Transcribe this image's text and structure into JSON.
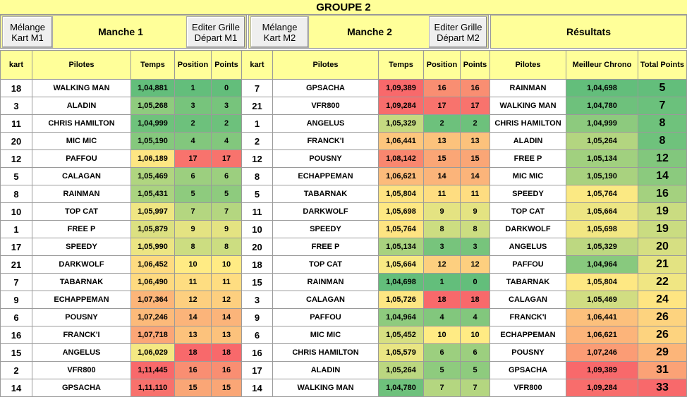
{
  "title": "GROUPE 2",
  "buttons": {
    "melange_m1": [
      "Mélange",
      "Kart M1"
    ],
    "editer_m1": [
      "Editer Grille",
      "Départ  M1"
    ],
    "melange_m2": [
      "Mélange",
      "Kart M2"
    ],
    "editer_m2": [
      "Editer Grille",
      "Départ  M2"
    ]
  },
  "headers": {
    "manche1": "Manche 1",
    "manche2": "Manche 2",
    "resultats": "Résultats"
  },
  "columns": {
    "manche": [
      "kart",
      "Pilotes",
      "Temps",
      "Position",
      "Points"
    ],
    "resultats": [
      "Pilotes",
      "Meilleur Chrono",
      "Total Points"
    ]
  },
  "manche1": [
    {
      "kart": "18",
      "pilote": "WALKING MAN",
      "temps": "1,04,881",
      "position": "1",
      "points": "0",
      "tc": "#63be7b",
      "pc": "#63be7b"
    },
    {
      "kart": "3",
      "pilote": "ALADIN",
      "temps": "1,05,268",
      "position": "3",
      "points": "3",
      "tc": "#8fcb7e",
      "pc": "#77c47c"
    },
    {
      "kart": "11",
      "pilote": "CHRIS HAMILTON",
      "temps": "1,04,999",
      "position": "2",
      "points": "2",
      "tc": "#6fc27c",
      "pc": "#6dc17c"
    },
    {
      "kart": "20",
      "pilote": "MIC MIC",
      "temps": "1,05,190",
      "position": "4",
      "points": "4",
      "tc": "#85c87d",
      "pc": "#82c77d"
    },
    {
      "kart": "12",
      "pilote": "PAFFOU",
      "temps": "1,06,189",
      "position": "17",
      "points": "17",
      "tc": "#fee683",
      "pc": "#f8736d"
    },
    {
      "kart": "5",
      "pilote": "CALAGAN",
      "temps": "1,05,469",
      "position": "6",
      "points": "6",
      "tc": "#b0d580",
      "pc": "#9ccf7f"
    },
    {
      "kart": "8",
      "pilote": "RAINMAN",
      "temps": "1,05,431",
      "position": "5",
      "points": "5",
      "tc": "#aad380",
      "pc": "#8ecb7e"
    },
    {
      "kart": "10",
      "pilote": "TOP CAT",
      "temps": "1,05,997",
      "position": "7",
      "points": "7",
      "tc": "#efe683",
      "pc": "#b4d680"
    },
    {
      "kart": "1",
      "pilote": "FREE P",
      "temps": "1,05,879",
      "position": "9",
      "points": "9",
      "tc": "#dce081",
      "pc": "#e4e382"
    },
    {
      "kart": "17",
      "pilote": "SPEEDY",
      "temps": "1,05,990",
      "position": "8",
      "points": "8",
      "tc": "#ece583",
      "pc": "#ccdd81"
    },
    {
      "kart": "21",
      "pilote": "DARKWOLF",
      "temps": "1,06,452",
      "position": "10",
      "points": "10",
      "tc": "#fedb81",
      "pc": "#ffeb84"
    },
    {
      "kart": "7",
      "pilote": "TABARNAK",
      "temps": "1,06,490",
      "position": "11",
      "points": "11",
      "tc": "#feda80",
      "pc": "#fedd81"
    },
    {
      "kart": "9",
      "pilote": "ECHAPPEMAN",
      "temps": "1,07,364",
      "position": "12",
      "points": "12",
      "tc": "#fcb579",
      "pc": "#fdcf7f"
    },
    {
      "kart": "6",
      "pilote": "POUSNY",
      "temps": "1,07,246",
      "position": "14",
      "points": "14",
      "tc": "#fcba7a",
      "pc": "#fbb47a"
    },
    {
      "kart": "16",
      "pilote": "FRANCK'I",
      "temps": "1,07,718",
      "position": "13",
      "points": "13",
      "tc": "#fba677",
      "pc": "#fcc27c"
    },
    {
      "kart": "15",
      "pilote": "ANGELUS",
      "temps": "1,06,029",
      "position": "18",
      "points": "18",
      "tc": "#f4e883",
      "pc": "#f8696b"
    },
    {
      "kart": "2",
      "pilote": "VFR800",
      "temps": "1,11,445",
      "position": "16",
      "points": "16",
      "tc": "#f8696b",
      "pc": "#f98e72"
    },
    {
      "kart": "14",
      "pilote": "GPSACHA",
      "temps": "1,11,110",
      "position": "15",
      "points": "15",
      "tc": "#f8716c",
      "pc": "#faa676"
    }
  ],
  "manche2": [
    {
      "kart": "7",
      "pilote": "GPSACHA",
      "temps": "1,09,389",
      "position": "16",
      "points": "16",
      "tc": "#f8696b",
      "pc": "#f98e72"
    },
    {
      "kart": "21",
      "pilote": "VFR800",
      "temps": "1,09,284",
      "position": "17",
      "points": "17",
      "tc": "#f86d6c",
      "pc": "#f8736d"
    },
    {
      "kart": "1",
      "pilote": "ANGELUS",
      "temps": "1,05,329",
      "position": "2",
      "points": "2",
      "tc": "#c5da81",
      "pc": "#6dc17c"
    },
    {
      "kart": "2",
      "pilote": "FRANCK'I",
      "temps": "1,06,441",
      "position": "13",
      "points": "13",
      "tc": "#fdc67d",
      "pc": "#fcc27c"
    },
    {
      "kart": "12",
      "pilote": "POUSNY",
      "temps": "1,08,142",
      "position": "15",
      "points": "15",
      "tc": "#f9876f",
      "pc": "#faa676"
    },
    {
      "kart": "8",
      "pilote": "ECHAPPEMAN",
      "temps": "1,06,621",
      "position": "14",
      "points": "14",
      "tc": "#fcbb7b",
      "pc": "#fbb47a"
    },
    {
      "kart": "5",
      "pilote": "TABARNAK",
      "temps": "1,05,804",
      "position": "11",
      "points": "11",
      "tc": "#fee382",
      "pc": "#fedd81"
    },
    {
      "kart": "11",
      "pilote": "DARKWOLF",
      "temps": "1,05,698",
      "position": "9",
      "points": "9",
      "tc": "#fee883",
      "pc": "#e4e382"
    },
    {
      "kart": "10",
      "pilote": "SPEEDY",
      "temps": "1,05,764",
      "position": "8",
      "points": "8",
      "tc": "#fee482",
      "pc": "#ccdd81"
    },
    {
      "kart": "20",
      "pilote": "FREE P",
      "temps": "1,05,134",
      "position": "3",
      "points": "3",
      "tc": "#a8d27f",
      "pc": "#77c47c"
    },
    {
      "kart": "18",
      "pilote": "TOP CAT",
      "temps": "1,05,664",
      "position": "12",
      "points": "12",
      "tc": "#f8e984",
      "pc": "#fdcf7f"
    },
    {
      "kart": "15",
      "pilote": "RAINMAN",
      "temps": "1,04,698",
      "position": "1",
      "points": "0",
      "tc": "#63be7b",
      "pc": "#63be7b"
    },
    {
      "kart": "3",
      "pilote": "CALAGAN",
      "temps": "1,05,726",
      "position": "18",
      "points": "18",
      "tc": "#fee683",
      "pc": "#f8696b"
    },
    {
      "kart": "9",
      "pilote": "PAFFOU",
      "temps": "1,04,964",
      "position": "4",
      "points": "4",
      "tc": "#8ecb7e",
      "pc": "#82c77d"
    },
    {
      "kart": "6",
      "pilote": "MIC MIC",
      "temps": "1,05,452",
      "position": "10",
      "points": "10",
      "tc": "#d7df82",
      "pc": "#ffeb84"
    },
    {
      "kart": "16",
      "pilote": "CHRIS HAMILTON",
      "temps": "1,05,579",
      "position": "6",
      "points": "6",
      "tc": "#e9e583",
      "pc": "#9ccf7f"
    },
    {
      "kart": "17",
      "pilote": "ALADIN",
      "temps": "1,05,264",
      "position": "5",
      "points": "5",
      "tc": "#bbd780",
      "pc": "#8ecb7e"
    },
    {
      "kart": "14",
      "pilote": "WALKING MAN",
      "temps": "1,04,780",
      "position": "7",
      "points": "7",
      "tc": "#6ec17c",
      "pc": "#b4d680"
    }
  ],
  "resultats": [
    {
      "pilote": "RAINMAN",
      "chrono": "1,04,698",
      "total": "5",
      "cc": "#63be7b",
      "tc": "#63be7b"
    },
    {
      "pilote": "WALKING MAN",
      "chrono": "1,04,780",
      "total": "7",
      "cc": "#6ec17c",
      "tc": "#6bc17c"
    },
    {
      "pilote": "CHRIS HAMILTON",
      "chrono": "1,04,999",
      "total": "8",
      "cc": "#8dca7e",
      "tc": "#6fc27c"
    },
    {
      "pilote": "ALADIN",
      "chrono": "1,05,264",
      "total": "8",
      "cc": "#b3d580",
      "tc": "#6fc27c"
    },
    {
      "pilote": "FREE P",
      "chrono": "1,05,134",
      "total": "12",
      "cc": "#a1d07f",
      "tc": "#82c77d"
    },
    {
      "pilote": "MIC MIC",
      "chrono": "1,05,190",
      "total": "14",
      "cc": "#a9d27f",
      "tc": "#8bca7e"
    },
    {
      "pilote": "SPEEDY",
      "chrono": "1,05,764",
      "total": "16",
      "cc": "#fbe983",
      "tc": "#a4d17f"
    },
    {
      "pilote": "TOP CAT",
      "chrono": "1,05,664",
      "total": "19",
      "cc": "#ede683",
      "tc": "#cadc81"
    },
    {
      "pilote": "DARKWOLF",
      "chrono": "1,05,698",
      "total": "19",
      "cc": "#f2e783",
      "tc": "#cadc81"
    },
    {
      "pilote": "ANGELUS",
      "chrono": "1,05,329",
      "total": "20",
      "cc": "#bdd881",
      "tc": "#d6df82"
    },
    {
      "pilote": "PAFFOU",
      "chrono": "1,04,964",
      "total": "21",
      "cc": "#88c97e",
      "tc": "#e3e382"
    },
    {
      "pilote": "TABARNAK",
      "chrono": "1,05,804",
      "total": "22",
      "cc": "#fee883",
      "tc": "#f0e683"
    },
    {
      "pilote": "CALAGAN",
      "chrono": "1,05,469",
      "total": "24",
      "cc": "#d1dd82",
      "tc": "#fee582"
    },
    {
      "pilote": "FRANCK'I",
      "chrono": "1,06,441",
      "total": "26",
      "cc": "#fcc07c",
      "tc": "#fdd37f"
    },
    {
      "pilote": "ECHAPPEMAN",
      "chrono": "1,06,621",
      "total": "26",
      "cc": "#fcb47a",
      "tc": "#fdd37f"
    },
    {
      "pilote": "POUSNY",
      "chrono": "1,07,246",
      "total": "29",
      "cc": "#fb9c75",
      "tc": "#fcb579"
    },
    {
      "pilote": "GPSACHA",
      "chrono": "1,09,389",
      "total": "31",
      "cc": "#f8696b",
      "tc": "#fba276"
    },
    {
      "pilote": "VFR800",
      "chrono": "1,09,284",
      "total": "33",
      "cc": "#f86d6c",
      "tc": "#f8696b"
    }
  ]
}
